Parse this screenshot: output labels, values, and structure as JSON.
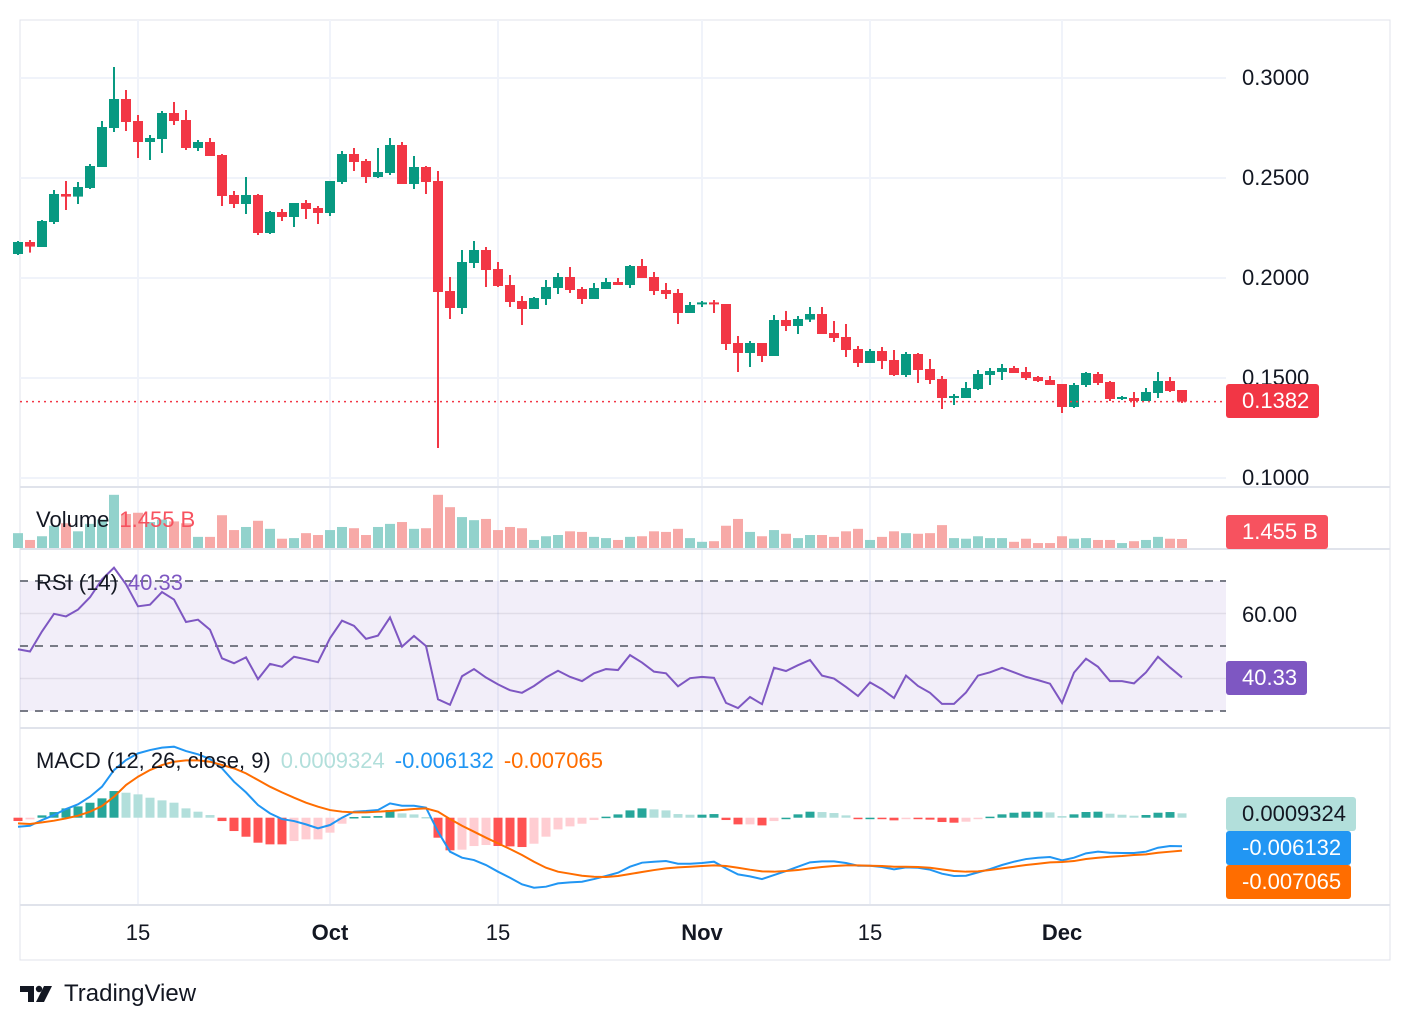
{
  "chart_data": {
    "type": "candlestick",
    "price_axis": {
      "ticks": [
        "0.3000",
        "0.2500",
        "0.2000",
        "0.1500",
        "0.1000"
      ],
      "range": [
        0.095,
        0.33
      ]
    },
    "time_axis": {
      "ticks": [
        {
          "label": "15",
          "index": 10,
          "major": false
        },
        {
          "label": "Oct",
          "index": 26,
          "major": true
        },
        {
          "label": "15",
          "index": 40,
          "major": false
        },
        {
          "label": "Nov",
          "index": 57,
          "major": true
        },
        {
          "label": "15",
          "index": 71,
          "major": false
        },
        {
          "label": "Dec",
          "index": 87,
          "major": true
        }
      ]
    },
    "candles_ohlc": [
      [
        0.212,
        0.2185,
        0.2115,
        0.218
      ],
      [
        0.218,
        0.219,
        0.2127,
        0.2157
      ],
      [
        0.2155,
        0.229,
        0.2155,
        0.2285
      ],
      [
        0.228,
        0.244,
        0.227,
        0.242
      ],
      [
        0.242,
        0.2485,
        0.234,
        0.2407
      ],
      [
        0.2407,
        0.248,
        0.237,
        0.2455
      ],
      [
        0.245,
        0.257,
        0.2445,
        0.256
      ],
      [
        0.2555,
        0.2785,
        0.2555,
        0.2755
      ],
      [
        0.275,
        0.3055,
        0.273,
        0.2895
      ],
      [
        0.2895,
        0.294,
        0.2735,
        0.278
      ],
      [
        0.2785,
        0.2815,
        0.26,
        0.268
      ],
      [
        0.268,
        0.2715,
        0.259,
        0.27
      ],
      [
        0.2695,
        0.2835,
        0.2625,
        0.2825
      ],
      [
        0.2825,
        0.288,
        0.2765,
        0.2785
      ],
      [
        0.279,
        0.284,
        0.264,
        0.265
      ],
      [
        0.265,
        0.269,
        0.2635,
        0.268
      ],
      [
        0.268,
        0.27,
        0.261,
        0.261
      ],
      [
        0.2615,
        0.262,
        0.236,
        0.241
      ],
      [
        0.2415,
        0.2435,
        0.235,
        0.237
      ],
      [
        0.237,
        0.2505,
        0.232,
        0.2415
      ],
      [
        0.2415,
        0.242,
        0.2215,
        0.2225
      ],
      [
        0.2225,
        0.2335,
        0.222,
        0.233
      ],
      [
        0.233,
        0.2345,
        0.2285,
        0.2305
      ],
      [
        0.2305,
        0.2375,
        0.2255,
        0.2375
      ],
      [
        0.2375,
        0.239,
        0.2295,
        0.2345
      ],
      [
        0.235,
        0.236,
        0.227,
        0.2325
      ],
      [
        0.2325,
        0.2485,
        0.231,
        0.2485
      ],
      [
        0.248,
        0.2635,
        0.247,
        0.262
      ],
      [
        0.262,
        0.265,
        0.2535,
        0.258
      ],
      [
        0.2585,
        0.2595,
        0.2475,
        0.2505
      ],
      [
        0.2505,
        0.265,
        0.25,
        0.253
      ],
      [
        0.2525,
        0.27,
        0.2515,
        0.2665
      ],
      [
        0.2665,
        0.268,
        0.247,
        0.247
      ],
      [
        0.247,
        0.261,
        0.2445,
        0.2555
      ],
      [
        0.2555,
        0.256,
        0.242,
        0.248
      ],
      [
        0.2485,
        0.2535,
        0.115,
        0.193
      ],
      [
        0.1935,
        0.2005,
        0.1795,
        0.185
      ],
      [
        0.185,
        0.214,
        0.182,
        0.208
      ],
      [
        0.2075,
        0.2185,
        0.205,
        0.214
      ],
      [
        0.214,
        0.2155,
        0.1955,
        0.204
      ],
      [
        0.2045,
        0.208,
        0.1955,
        0.196
      ],
      [
        0.1965,
        0.2015,
        0.1855,
        0.188
      ],
      [
        0.1885,
        0.191,
        0.1765,
        0.1845
      ],
      [
        0.1845,
        0.1905,
        0.1845,
        0.19
      ],
      [
        0.1895,
        0.199,
        0.1865,
        0.1955
      ],
      [
        0.195,
        0.2025,
        0.192,
        0.2005
      ],
      [
        0.2005,
        0.2055,
        0.1925,
        0.194
      ],
      [
        0.1945,
        0.1955,
        0.187,
        0.1895
      ],
      [
        0.1895,
        0.1975,
        0.1895,
        0.195
      ],
      [
        0.1945,
        0.2,
        0.1945,
        0.198
      ],
      [
        0.198,
        0.2,
        0.1965,
        0.1965
      ],
      [
        0.1965,
        0.2065,
        0.195,
        0.206
      ],
      [
        0.206,
        0.2095,
        0.2,
        0.2
      ],
      [
        0.2005,
        0.203,
        0.1915,
        0.1935
      ],
      [
        0.194,
        0.1975,
        0.1895,
        0.192
      ],
      [
        0.1925,
        0.1945,
        0.177,
        0.1825
      ],
      [
        0.1825,
        0.188,
        0.1825,
        0.1865
      ],
      [
        0.1868,
        0.1885,
        0.1855,
        0.1878
      ],
      [
        0.1878,
        0.189,
        0.1825,
        0.1868
      ],
      [
        0.187,
        0.187,
        0.164,
        0.167
      ],
      [
        0.1675,
        0.171,
        0.153,
        0.1625
      ],
      [
        0.1625,
        0.1685,
        0.1555,
        0.1675
      ],
      [
        0.1675,
        0.1675,
        0.158,
        0.161
      ],
      [
        0.161,
        0.1815,
        0.161,
        0.179
      ],
      [
        0.179,
        0.1835,
        0.1735,
        0.176
      ],
      [
        0.176,
        0.181,
        0.172,
        0.1795
      ],
      [
        0.1792,
        0.1855,
        0.178,
        0.182
      ],
      [
        0.182,
        0.1855,
        0.172,
        0.172
      ],
      [
        0.1725,
        0.1785,
        0.168,
        0.17
      ],
      [
        0.1705,
        0.177,
        0.1605,
        0.164
      ],
      [
        0.1645,
        0.166,
        0.1555,
        0.1575
      ],
      [
        0.1575,
        0.1645,
        0.1575,
        0.1635
      ],
      [
        0.1635,
        0.1655,
        0.1545,
        0.1585
      ],
      [
        0.159,
        0.164,
        0.151,
        0.1515
      ],
      [
        0.1515,
        0.163,
        0.1505,
        0.162
      ],
      [
        0.162,
        0.1625,
        0.1475,
        0.154
      ],
      [
        0.1545,
        0.1595,
        0.147,
        0.149
      ],
      [
        0.1495,
        0.151,
        0.1345,
        0.14
      ],
      [
        0.14,
        0.142,
        0.1365,
        0.141
      ],
      [
        0.14,
        0.148,
        0.14,
        0.145
      ],
      [
        0.1445,
        0.154,
        0.144,
        0.152
      ],
      [
        0.1515,
        0.155,
        0.1465,
        0.1535
      ],
      [
        0.153,
        0.157,
        0.149,
        0.155
      ],
      [
        0.155,
        0.156,
        0.1525,
        0.1525
      ],
      [
        0.153,
        0.1555,
        0.149,
        0.15
      ],
      [
        0.1505,
        0.151,
        0.148,
        0.1485
      ],
      [
        0.149,
        0.151,
        0.1465,
        0.1465
      ],
      [
        0.147,
        0.147,
        0.1325,
        0.1355
      ],
      [
        0.1355,
        0.1475,
        0.135,
        0.1465
      ],
      [
        0.1465,
        0.153,
        0.1455,
        0.1525
      ],
      [
        0.152,
        0.153,
        0.1465,
        0.1475
      ],
      [
        0.148,
        0.1485,
        0.1385,
        0.1395
      ],
      [
        0.1395,
        0.141,
        0.139,
        0.1405
      ],
      [
        0.14,
        0.143,
        0.1355,
        0.1385
      ],
      [
        0.1385,
        0.145,
        0.1385,
        0.143
      ],
      [
        0.1425,
        0.153,
        0.14,
        0.1485
      ],
      [
        0.1485,
        0.1505,
        0.143,
        0.1435
      ],
      [
        0.144,
        0.144,
        0.1375,
        0.1382
      ]
    ],
    "last_price": "0.1382",
    "volume_billions": [
      2.4,
      1.3,
      1.9,
      3.6,
      4.0,
      2.7,
      3.9,
      4.6,
      8.6,
      5.5,
      5.7,
      4.2,
      4.6,
      4.3,
      4.0,
      1.8,
      1.8,
      5.3,
      2.9,
      3.4,
      4.4,
      3.1,
      1.5,
      1.6,
      2.4,
      2.1,
      2.9,
      3.4,
      3.2,
      2.1,
      3.4,
      3.9,
      4.2,
      3.1,
      3.2,
      8.6,
      6.6,
      5.0,
      4.5,
      4.7,
      2.9,
      3.4,
      3.2,
      1.3,
      1.9,
      2.1,
      2.7,
      2.6,
      1.8,
      1.6,
      1.3,
      1.8,
      1.9,
      2.7,
      2.6,
      3.1,
      1.6,
      1.0,
      1.1,
      3.6,
      4.7,
      2.6,
      1.9,
      2.9,
      2.3,
      1.6,
      2.1,
      2.1,
      1.8,
      2.7,
      3.1,
      1.3,
      1.8,
      2.7,
      2.4,
      2.3,
      2.4,
      3.7,
      1.6,
      1.5,
      1.9,
      1.6,
      1.6,
      1.0,
      1.5,
      0.8,
      0.8,
      1.9,
      1.5,
      1.6,
      1.3,
      1.3,
      0.8,
      1.1,
      1.3,
      1.8,
      1.5,
      1.455
    ],
    "rsi": [
      49.0,
      48.3,
      54.5,
      59.9,
      59.1,
      61.2,
      65.0,
      70.5,
      74.1,
      69.0,
      62.2,
      62.7,
      66.6,
      64.3,
      57.4,
      58.1,
      55.0,
      46.2,
      44.7,
      46.5,
      39.8,
      44.5,
      43.6,
      46.7,
      45.9,
      45.0,
      52.4,
      57.8,
      56.2,
      52.2,
      53.2,
      58.8,
      49.8,
      53.1,
      50.0,
      33.6,
      31.9,
      40.7,
      42.9,
      40.3,
      38.2,
      36.4,
      35.6,
      37.7,
      40.3,
      42.4,
      40.5,
      39.2,
      41.6,
      42.9,
      42.6,
      47.2,
      44.9,
      42.1,
      41.6,
      37.6,
      40.1,
      40.5,
      40.2,
      32.5,
      30.9,
      34.3,
      32.1,
      43.3,
      42.3,
      44.1,
      45.7,
      40.9,
      40.0,
      37.4,
      34.6,
      38.8,
      36.7,
      34.0,
      40.9,
      37.7,
      35.6,
      32.2,
      32.2,
      35.7,
      40.9,
      41.9,
      43.3,
      41.9,
      40.5,
      39.5,
      38.4,
      32.5,
      41.8,
      46.1,
      43.6,
      39.2,
      39.2,
      38.5,
      41.9,
      46.7,
      43.4,
      40.33
    ],
    "rsi_levels": [
      70,
      50,
      30
    ],
    "rsi_axis_ticks": [
      "60.00"
    ],
    "macd": [
      -0.00193,
      -0.00172,
      -0.0005,
      0.00057,
      0.00186,
      0.00286,
      0.0045,
      0.00665,
      0.01022,
      0.01237,
      0.0138,
      0.01451,
      0.01502,
      0.01523,
      0.0143,
      0.01359,
      0.01258,
      0.01058,
      0.00772,
      0.00543,
      0.00272,
      0.00093,
      -0.00029,
      -0.00072,
      -0.00143,
      -0.00229,
      -0.00157,
      0,
      0.00129,
      0.00143,
      0.00164,
      0.00307,
      0.00257,
      0.00257,
      0.00215,
      -0.003,
      -0.00729,
      -0.00858,
      -0.00908,
      -0.01015,
      -0.01158,
      -0.01287,
      -0.0143,
      -0.01502,
      -0.0148,
      -0.01409,
      -0.01387,
      -0.01373,
      -0.01316,
      -0.01251,
      -0.0118,
      -0.01051,
      -0.00965,
      -0.00944,
      -0.0093,
      -0.00987,
      -0.00987,
      -0.00972,
      -0.00944,
      -0.01087,
      -0.01216,
      -0.01258,
      -0.01316,
      -0.0123,
      -0.01144,
      -0.01051,
      -0.00958,
      -0.00937,
      -0.00937,
      -0.00972,
      -0.0103,
      -0.0103,
      -0.01058,
      -0.01108,
      -0.01065,
      -0.01073,
      -0.01115,
      -0.01201,
      -0.01251,
      -0.01244,
      -0.01173,
      -0.01101,
      -0.01015,
      -0.00944,
      -0.00887,
      -0.00858,
      -0.00844,
      -0.00915,
      -0.00858,
      -0.00765,
      -0.00729,
      -0.00751,
      -0.00758,
      -0.00758,
      -0.00729,
      -0.00644,
      -0.00608,
      -0.006132
    ],
    "signal": [
      -0.00122,
      -0.00136,
      -0.001,
      -0.00064,
      -0.00014,
      0.00043,
      0.00129,
      0.0025,
      0.0045,
      0.00701,
      0.00879,
      0.01022,
      0.0113,
      0.01201,
      0.0123,
      0.0123,
      0.01201,
      0.0113,
      0.01058,
      0.00951,
      0.00808,
      0.00665,
      0.00543,
      0.00429,
      0.00322,
      0.00236,
      0.00164,
      0.00129,
      0.00114,
      0.00114,
      0.00129,
      0.00143,
      0.00164,
      0.00186,
      0.002,
      0.00129,
      -0.00029,
      -0.00172,
      -0.003,
      -0.00429,
      -0.00551,
      -0.00672,
      -0.00801,
      -0.00944,
      -0.01073,
      -0.01158,
      -0.01201,
      -0.01244,
      -0.01266,
      -0.01273,
      -0.01251,
      -0.01208,
      -0.01165,
      -0.01123,
      -0.01087,
      -0.01065,
      -0.01051,
      -0.01037,
      -0.01022,
      -0.01037,
      -0.01073,
      -0.01115,
      -0.01151,
      -0.01158,
      -0.01144,
      -0.01123,
      -0.01087,
      -0.01058,
      -0.01037,
      -0.01022,
      -0.01022,
      -0.0103,
      -0.01037,
      -0.01051,
      -0.01051,
      -0.01058,
      -0.01073,
      -0.01108,
      -0.01144,
      -0.01158,
      -0.01151,
      -0.01123,
      -0.01087,
      -0.01051,
      -0.01015,
      -0.00987,
      -0.00958,
      -0.00951,
      -0.0093,
      -0.00887,
      -0.00858,
      -0.00837,
      -0.00822,
      -0.00801,
      -0.00787,
      -0.00751,
      -0.00729,
      -0.007065
    ],
    "colors": {
      "up": "#089981",
      "down": "#f23645",
      "vol_up": "#92d2cc",
      "vol_down": "#f7a9a7",
      "rsi": "#7e57c2",
      "macd": "#2196f3",
      "signal": "#ff6d00",
      "hist_up_grow": "#26a69a",
      "hist_up_fall": "#b2dfdb",
      "hist_down_grow": "#ff5252",
      "hist_down_fall": "#ffcdd2"
    }
  },
  "legends": {
    "volume": {
      "title": "Volume",
      "value": "1.455 B"
    },
    "rsi": {
      "title": "RSI (14)",
      "value": "40.33"
    },
    "macd": {
      "title": "MACD (12, 26, close, 9)",
      "hist": "0.0009324",
      "macd": "-0.006132",
      "signal": "-0.007065"
    }
  },
  "tags": {
    "price": "0.1382",
    "volume": "1.455 B",
    "rsi": "40.33",
    "hist": "0.0009324",
    "macd": "-0.006132",
    "signal": "-0.007065"
  },
  "logo": {
    "text": "TradingView"
  }
}
